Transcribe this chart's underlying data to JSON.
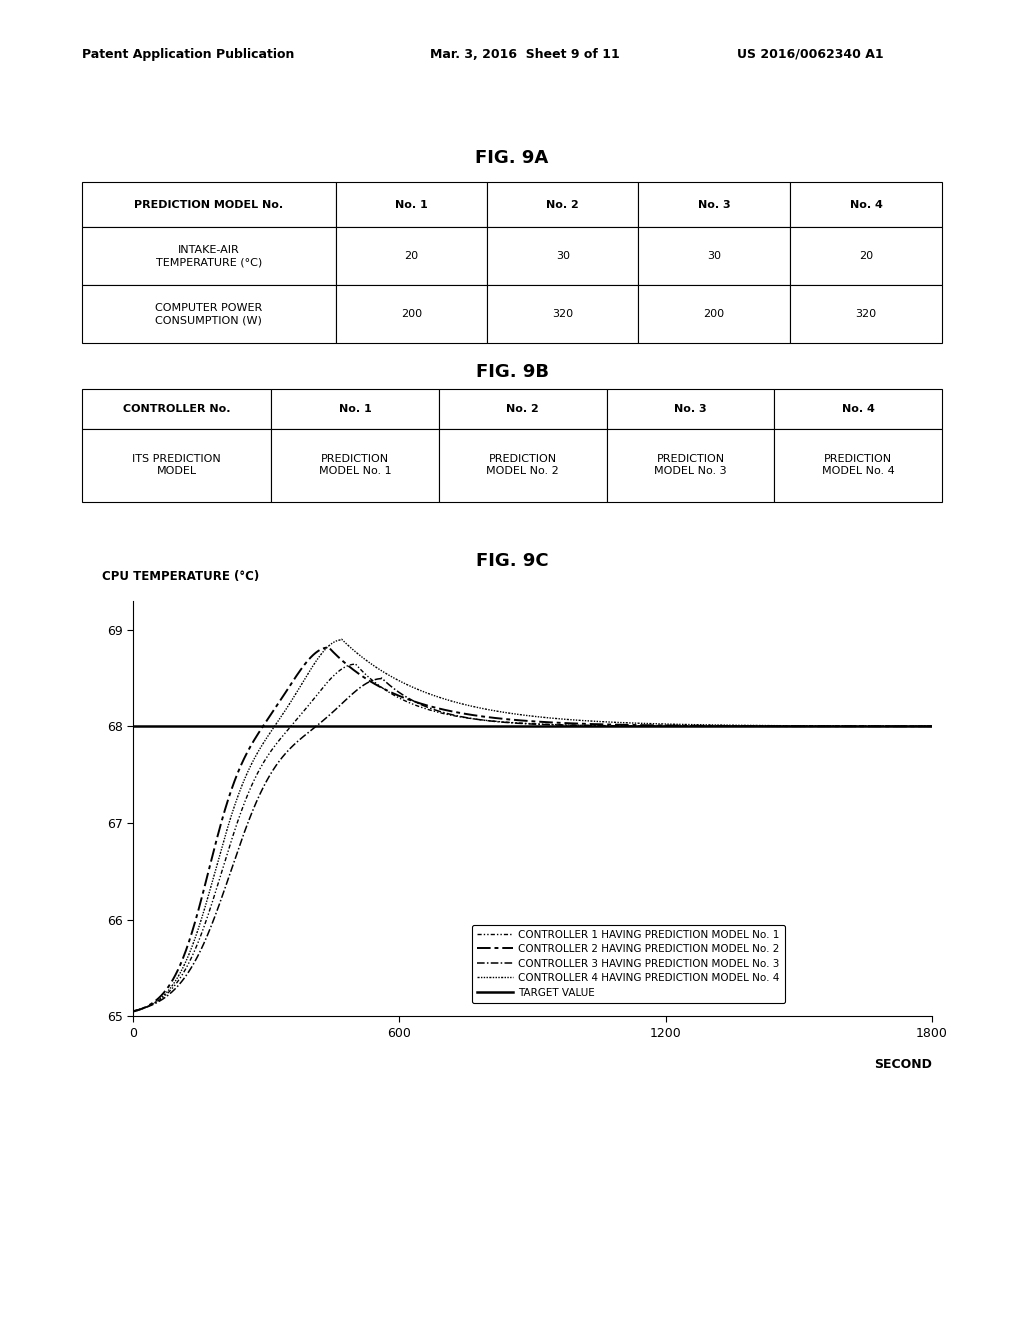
{
  "header_left": "Patent Application Publication",
  "header_mid": "Mar. 3, 2016  Sheet 9 of 11",
  "header_right": "US 2016/0062340 A1",
  "fig9a_title": "FIG. 9A",
  "fig9b_title": "FIG. 9B",
  "fig9c_title": "FIG. 9C",
  "table9a_col_headers": [
    "PREDICTION MODEL No.",
    "No. 1",
    "No. 2",
    "No. 3",
    "No. 4"
  ],
  "table9a_rows": [
    [
      "INTAKE-AIR\nTEMPERATURE (°C)",
      "20",
      "30",
      "30",
      "20"
    ],
    [
      "COMPUTER POWER\nCONSUMPTION (W)",
      "200",
      "320",
      "200",
      "320"
    ]
  ],
  "table9b_col_headers": [
    "CONTROLLER No.",
    "No. 1",
    "No. 2",
    "No. 3",
    "No. 4"
  ],
  "table9b_rows": [
    [
      "ITS PREDICTION\nMODEL",
      "PREDICTION\nMODEL No. 1",
      "PREDICTION\nMODEL No. 2",
      "PREDICTION\nMODEL No. 3",
      "PREDICTION\nMODEL No. 4"
    ]
  ],
  "chart_ylabel": "CPU TEMPERATURE (°C)",
  "chart_xlabel": "SECOND",
  "chart_yticks": [
    65,
    66,
    67,
    68,
    69
  ],
  "chart_xticks": [
    0,
    600,
    1200,
    1800
  ],
  "chart_ylim": [
    65.0,
    69.3
  ],
  "chart_xlim": [
    0,
    1800
  ],
  "target_value": 68.0,
  "legend_entries": [
    "CONTROLLER 1 HAVING PREDICTION MODEL No. 1",
    "CONTROLLER 2 HAVING PREDICTION MODEL No. 2",
    "CONTROLLER 3 HAVING PREDICTION MODEL No. 3",
    "CONTROLLER 4 HAVING PREDICTION MODEL No. 4",
    "TARGET VALUE"
  ]
}
